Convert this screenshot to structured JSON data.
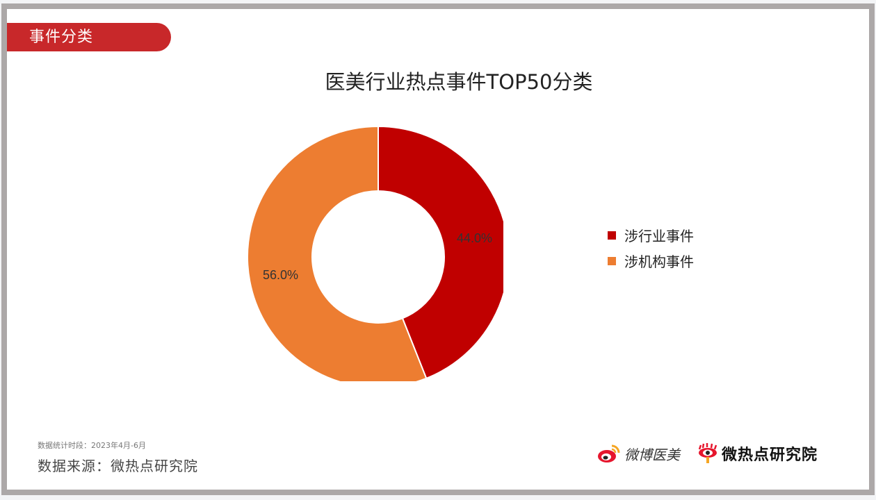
{
  "section_tab": {
    "label": "事件分类"
  },
  "chart_data": {
    "type": "pie",
    "variant": "donut",
    "title": "医美行业热点事件TOP50分类",
    "categories": [
      "涉行业事件",
      "涉机构事件"
    ],
    "values": [
      44.0,
      56.0
    ],
    "labels": [
      "44.0%",
      "56.0%"
    ],
    "colors": [
      "#c00000",
      "#ed7d31"
    ],
    "legend_position": "right"
  },
  "legend": {
    "items": [
      {
        "label": "涉行业事件",
        "color": "#c00000"
      },
      {
        "label": "涉机构事件",
        "color": "#ed7d31"
      }
    ]
  },
  "footer": {
    "period": "数据统计时段：2023年4月-6月",
    "source": "数据来源：微热点研究院"
  },
  "logos": {
    "weibo": "微博医美",
    "wrd": "微热点研究院"
  },
  "colors": {
    "accent": "#c8282a",
    "frame": "#aca8a8"
  }
}
